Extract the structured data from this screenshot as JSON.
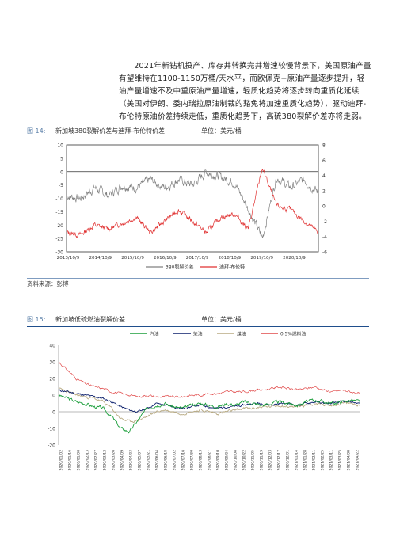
{
  "paragraph": "2021年新钻机投产、库存井转换完井增速较慢背景下，美国原油产量有望维持在1100-1150万桶/天水平，而欧佩克+原油产量逐步提升，轻油产量增速不及中重原油产量增速，轻质化趋势将逐步转向重质化延续（美国对伊朗、委内瑞拉原油制裁的豁免将加速重质化趋势），驱动迪拜-布伦特原油价差持续走低，重质化趋势下，高硫380裂解价差亦将走弱。",
  "figure14": {
    "number": "图 14:",
    "title": "新加坡380裂解价差与迪拜-布伦特价差",
    "unit": "单位：美元/桶",
    "source": "资料来源：彭博"
  },
  "figure15": {
    "number": "图 15:",
    "title": "新加坡低硫燃油裂解价差",
    "unit": "单位：美元/桶"
  },
  "colors": {
    "accent": "#1f4e8c",
    "gray": "#808080",
    "red": "#e03030",
    "green": "#1a9e3a",
    "navy": "#0b1f6b",
    "tan": "#b8aa82",
    "pink": "#e04848"
  },
  "chart_data": [
    {
      "type": "line",
      "left_ylim": [
        -30,
        10
      ],
      "left_ticks": [
        "10",
        "5",
        "0",
        "-5",
        "-10",
        "-15",
        "-20",
        "-25",
        "-30"
      ],
      "right_ylim": [
        -6,
        8
      ],
      "right_ticks": [
        "8",
        "6",
        "4",
        "2",
        "0",
        "-2",
        "-4",
        "-6"
      ],
      "x_ticks": [
        "2013/10/9",
        "2014/10/9",
        "2015/10/9",
        "2016/10/9",
        "2017/10/9",
        "2018/10/9",
        "2019/10/9",
        "2020/10/9"
      ],
      "series": [
        {
          "name": "380裂解价差",
          "axis": "left",
          "x": [
            "2013/10",
            "2014/04",
            "2014/10",
            "2015/04",
            "2015/10",
            "2016/04",
            "2016/10",
            "2017/04",
            "2017/10",
            "2018/04",
            "2018/10",
            "2019/04",
            "2019/07",
            "2019/10",
            "2020/01",
            "2020/04",
            "2020/07",
            "2020/10",
            "2021/01"
          ],
          "values": [
            -9,
            -10,
            -6,
            -9,
            -5,
            -6,
            -3,
            -6,
            -3,
            -5,
            0,
            -2,
            -4,
            -14,
            -25,
            -2,
            -6,
            -3,
            -8
          ]
        },
        {
          "name": "迪拜-布伦特",
          "axis": "right",
          "x": [
            "2013/10",
            "2014/04",
            "2014/10",
            "2015/04",
            "2015/10",
            "2016/04",
            "2016/10",
            "2017/04",
            "2017/10",
            "2018/04",
            "2018/10",
            "2019/04",
            "2019/07",
            "2019/10",
            "2020/01",
            "2020/04",
            "2020/07",
            "2020/10",
            "2021/01"
          ],
          "values": [
            -3.5,
            -3.8,
            -2.5,
            -3,
            -2.2,
            -1.5,
            -3.5,
            -2,
            -0.5,
            -2,
            -3.5,
            -1.5,
            -1,
            -3,
            5,
            0,
            -0.5,
            -2,
            -3.5
          ]
        }
      ]
    },
    {
      "type": "line",
      "ylim": [
        -20,
        40
      ],
      "y_ticks": [
        "40",
        "30",
        "20",
        "10",
        "0",
        "-10",
        "-20"
      ],
      "x_ticks": [
        "2020/01/02",
        "2020/01/16",
        "2020/01/30",
        "2020/02/13",
        "2020/02/27",
        "2020/03/12",
        "2020/03/26",
        "2020/04/09",
        "2020/04/23",
        "2020/05/07",
        "2020/05/21",
        "2020/06/04",
        "2020/06/18",
        "2020/07/02",
        "2020/07/16",
        "2020/07/30",
        "2020/08/13",
        "2020/08/27",
        "2020/09/10",
        "2020/09/24",
        "2020/10/08",
        "2020/10/22",
        "2020/11/05",
        "2020/11/19",
        "2020/12/03",
        "2020/12/17",
        "2020/12/31",
        "2021/01/14",
        "2021/01/28",
        "2021/02/11",
        "2021/02/25",
        "2021/03/11",
        "2021/03/25",
        "2021/04/08",
        "2021/04/22"
      ],
      "series": [
        {
          "name": "汽油",
          "values": [
            10,
            8,
            6,
            5,
            3,
            2,
            -3,
            -10,
            -12,
            -5,
            2,
            4,
            5,
            3,
            2,
            4,
            5,
            4,
            3,
            5,
            4,
            6,
            5,
            4,
            5,
            6,
            5,
            4,
            6,
            7,
            6,
            5,
            6,
            7,
            6
          ]
        },
        {
          "name": "柴油",
          "values": [
            13,
            12,
            11,
            10,
            9,
            8,
            6,
            3,
            1,
            0,
            2,
            5,
            4,
            3,
            2,
            3,
            4,
            3,
            2,
            3,
            3,
            4,
            5,
            5,
            4,
            5,
            5,
            4,
            5,
            6,
            5,
            5,
            6,
            6,
            5
          ]
        },
        {
          "name": "煤油",
          "values": [
            14,
            12,
            10,
            9,
            8,
            6,
            2,
            -4,
            -6,
            -5,
            -3,
            0,
            1,
            0,
            -1,
            0,
            1,
            0,
            -1,
            0,
            1,
            2,
            2,
            3,
            3,
            4,
            3,
            3,
            4,
            5,
            4,
            4,
            5,
            5,
            4
          ]
        },
        {
          "name": "0.5%燃料油",
          "values": [
            30,
            25,
            20,
            17,
            15,
            14,
            12,
            11,
            10,
            9,
            10,
            9,
            9,
            9,
            9,
            10,
            10,
            11,
            11,
            12,
            12,
            12,
            13,
            13,
            14,
            15,
            14,
            13,
            14,
            15,
            13,
            12,
            13,
            12,
            11
          ]
        }
      ]
    }
  ]
}
